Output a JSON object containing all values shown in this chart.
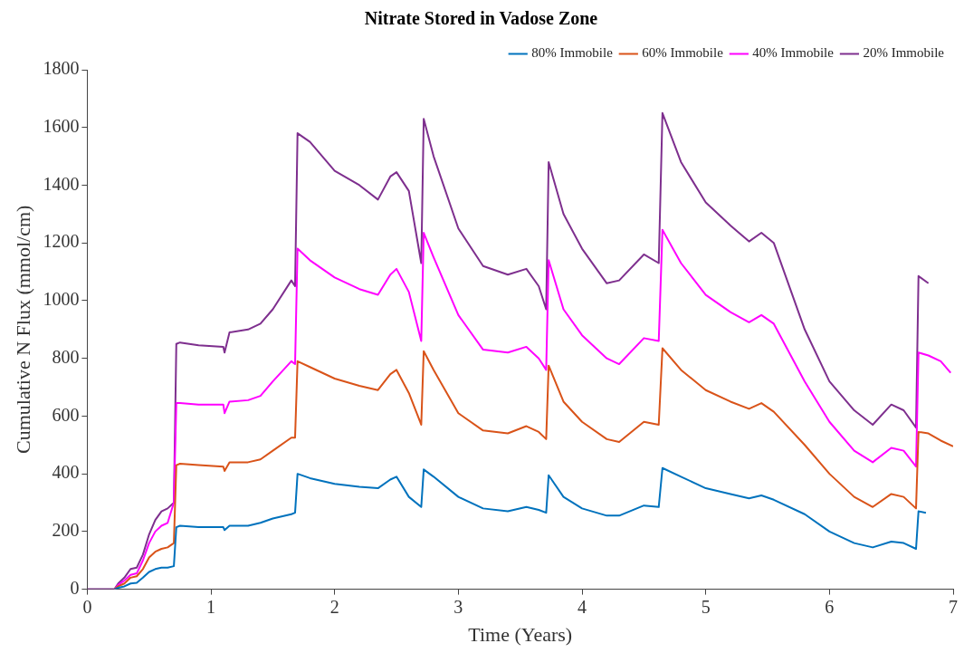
{
  "chart_data": {
    "type": "line",
    "title": "Nitrate Stored in Vadose Zone",
    "xlabel": "Time (Years)",
    "ylabel": "Cumulative N Flux (mmol/cm)",
    "xlim": [
      0,
      7
    ],
    "xticks": [
      0,
      1,
      2,
      3,
      4,
      5,
      6,
      7
    ],
    "ylim": [
      0,
      1800
    ],
    "yticks": [
      0,
      200,
      400,
      600,
      800,
      1000,
      1200,
      1400,
      1600,
      1800
    ],
    "grid": false,
    "legend": "top right",
    "marker": "none",
    "line_style": "solid",
    "series": [
      {
        "name": "80% Immobile",
        "color": "#0072bd",
        "x": [
          0.22,
          0.25,
          0.3,
          0.35,
          0.4,
          0.45,
          0.5,
          0.55,
          0.6,
          0.65,
          0.7,
          0.72,
          0.75,
          0.9,
          1.1,
          1.11,
          1.15,
          1.3,
          1.4,
          1.5,
          1.65,
          1.68,
          1.7,
          1.8,
          2.0,
          2.2,
          2.35,
          2.45,
          2.5,
          2.6,
          2.7,
          2.72,
          2.8,
          3.0,
          3.2,
          3.4,
          3.55,
          3.65,
          3.71,
          3.73,
          3.85,
          4.0,
          4.2,
          4.3,
          4.5,
          4.62,
          4.65,
          4.8,
          5.0,
          5.2,
          5.35,
          5.45,
          5.55,
          5.8,
          6.0,
          6.2,
          6.35,
          6.5,
          6.6,
          6.7,
          6.72,
          6.78
        ],
        "values": [
          0,
          5,
          10,
          20,
          22,
          40,
          60,
          70,
          75,
          75,
          80,
          215,
          220,
          215,
          215,
          205,
          220,
          220,
          230,
          245,
          260,
          265,
          400,
          385,
          365,
          355,
          350,
          380,
          390,
          320,
          285,
          415,
          390,
          320,
          280,
          270,
          285,
          275,
          265,
          395,
          320,
          280,
          255,
          255,
          290,
          285,
          420,
          390,
          350,
          330,
          315,
          325,
          310,
          260,
          200,
          160,
          145,
          165,
          160,
          140,
          270,
          265
        ]
      },
      {
        "name": "60% Immobile",
        "color": "#d95319",
        "x": [
          0.22,
          0.25,
          0.3,
          0.35,
          0.4,
          0.45,
          0.5,
          0.55,
          0.6,
          0.65,
          0.7,
          0.72,
          0.75,
          0.9,
          1.1,
          1.11,
          1.15,
          1.3,
          1.4,
          1.5,
          1.65,
          1.68,
          1.7,
          1.8,
          2.0,
          2.2,
          2.35,
          2.45,
          2.5,
          2.6,
          2.7,
          2.72,
          2.8,
          3.0,
          3.2,
          3.4,
          3.55,
          3.65,
          3.71,
          3.73,
          3.85,
          4.0,
          4.2,
          4.3,
          4.5,
          4.62,
          4.65,
          4.8,
          5.0,
          5.2,
          5.35,
          5.45,
          5.55,
          5.8,
          6.0,
          6.2,
          6.35,
          6.5,
          6.6,
          6.7,
          6.72,
          6.8,
          6.9,
          7.0
        ],
        "values": [
          0,
          10,
          20,
          40,
          45,
          70,
          110,
          130,
          140,
          145,
          160,
          430,
          435,
          430,
          425,
          410,
          440,
          440,
          450,
          480,
          525,
          525,
          790,
          770,
          730,
          705,
          690,
          745,
          760,
          680,
          570,
          825,
          760,
          610,
          550,
          540,
          565,
          545,
          520,
          775,
          650,
          580,
          520,
          510,
          580,
          570,
          835,
          760,
          690,
          650,
          625,
          645,
          615,
          500,
          400,
          320,
          285,
          330,
          320,
          280,
          545,
          540,
          515,
          495
        ]
      },
      {
        "name": "40% Immobile",
        "color": "#ff00ff",
        "x": [
          0.22,
          0.25,
          0.3,
          0.35,
          0.4,
          0.45,
          0.5,
          0.55,
          0.6,
          0.65,
          0.7,
          0.72,
          0.75,
          0.9,
          1.1,
          1.11,
          1.15,
          1.3,
          1.4,
          1.5,
          1.65,
          1.68,
          1.7,
          1.8,
          2.0,
          2.2,
          2.35,
          2.45,
          2.5,
          2.6,
          2.7,
          2.72,
          2.8,
          3.0,
          3.2,
          3.4,
          3.55,
          3.65,
          3.71,
          3.73,
          3.85,
          4.0,
          4.2,
          4.3,
          4.5,
          4.62,
          4.65,
          4.8,
          5.0,
          5.2,
          5.35,
          5.45,
          5.55,
          5.8,
          6.0,
          6.2,
          6.35,
          6.5,
          6.6,
          6.7,
          6.72,
          6.8,
          6.9,
          6.98
        ],
        "values": [
          0,
          15,
          30,
          50,
          55,
          100,
          160,
          200,
          220,
          230,
          300,
          645,
          645,
          640,
          640,
          610,
          650,
          655,
          670,
          720,
          790,
          780,
          1180,
          1140,
          1080,
          1040,
          1020,
          1090,
          1110,
          1030,
          860,
          1235,
          1150,
          950,
          830,
          820,
          840,
          800,
          760,
          1140,
          970,
          880,
          800,
          780,
          870,
          860,
          1245,
          1130,
          1020,
          960,
          925,
          950,
          920,
          720,
          580,
          480,
          440,
          490,
          480,
          425,
          820,
          810,
          790,
          750
        ]
      },
      {
        "name": "20% Immobile",
        "color": "#7e2f8e",
        "x": [
          0,
          0.22,
          0.25,
          0.3,
          0.35,
          0.4,
          0.45,
          0.5,
          0.55,
          0.6,
          0.65,
          0.7,
          0.72,
          0.75,
          0.9,
          1.1,
          1.11,
          1.15,
          1.3,
          1.4,
          1.5,
          1.65,
          1.68,
          1.7,
          1.8,
          2.0,
          2.2,
          2.35,
          2.45,
          2.5,
          2.6,
          2.7,
          2.72,
          2.8,
          3.0,
          3.2,
          3.4,
          3.55,
          3.65,
          3.71,
          3.73,
          3.85,
          4.0,
          4.2,
          4.3,
          4.5,
          4.62,
          4.65,
          4.8,
          5.0,
          5.2,
          5.35,
          5.45,
          5.55,
          5.8,
          6.0,
          6.2,
          6.35,
          6.5,
          6.6,
          6.7,
          6.72,
          6.8
        ],
        "values": [
          0,
          0,
          20,
          40,
          70,
          75,
          120,
          190,
          240,
          270,
          280,
          300,
          850,
          855,
          845,
          840,
          820,
          890,
          900,
          920,
          970,
          1070,
          1050,
          1580,
          1550,
          1450,
          1400,
          1350,
          1430,
          1445,
          1380,
          1130,
          1630,
          1500,
          1250,
          1120,
          1090,
          1110,
          1050,
          970,
          1480,
          1300,
          1180,
          1060,
          1070,
          1160,
          1130,
          1650,
          1480,
          1340,
          1260,
          1205,
          1235,
          1200,
          900,
          720,
          620,
          570,
          640,
          620,
          560,
          1085,
          1060
        ]
      }
    ]
  }
}
